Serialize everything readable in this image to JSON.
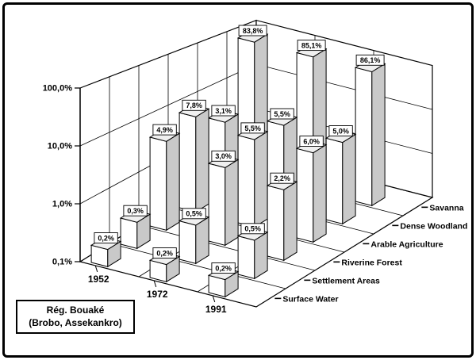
{
  "figure": {
    "background": "#ffffff",
    "border_color": "#000000",
    "bar_front_color": "#ffffff",
    "bar_side_color": "#c9c9c9",
    "bar_top_color": "#f0f0f0"
  },
  "chart_data": {
    "type": "bar",
    "style": "3d-column",
    "title": "",
    "annotation_lines": [
      "Rég. Bouaké",
      "(Brobo, Assekankro)"
    ],
    "value_axis": {
      "scale": "log",
      "min": 0.1,
      "max": 100,
      "unit": "%",
      "tick_labels_bottom_to_top": [
        "0,1%",
        "1,0%",
        "10,0%",
        "100,0%"
      ]
    },
    "x_categories": [
      "1952",
      "1972",
      "1991"
    ],
    "series_note": "series ordered front row to back row",
    "series": [
      {
        "name": "Surface Water",
        "values": [
          0.2,
          0.2,
          0.2
        ],
        "value_labels": [
          "0,2%",
          "0,2%",
          "0,2%"
        ]
      },
      {
        "name": "Settlement Areas",
        "values": [
          0.3,
          0.5,
          0.5
        ],
        "value_labels": [
          "0,3%",
          "0,5%",
          "0,5%"
        ]
      },
      {
        "name": "Riverine Forest",
        "values": [
          4.9,
          3.0,
          2.2
        ],
        "value_labels": [
          "4,9%",
          "3,0%",
          "2,2%"
        ]
      },
      {
        "name": "Arable Agriculture",
        "values": [
          7.8,
          5.5,
          6.0
        ],
        "value_labels": [
          "7,8%",
          "5,5%",
          "6,0%"
        ]
      },
      {
        "name": "Dense Woodland",
        "values": [
          3.1,
          5.5,
          5.0
        ],
        "value_labels": [
          "3,1%",
          "5,5%",
          "5,0%"
        ]
      },
      {
        "name": "Savanna",
        "values": [
          83.8,
          85.1,
          86.1
        ],
        "value_labels": [
          "83,8%",
          "85,1%",
          "86,1%"
        ]
      }
    ]
  }
}
